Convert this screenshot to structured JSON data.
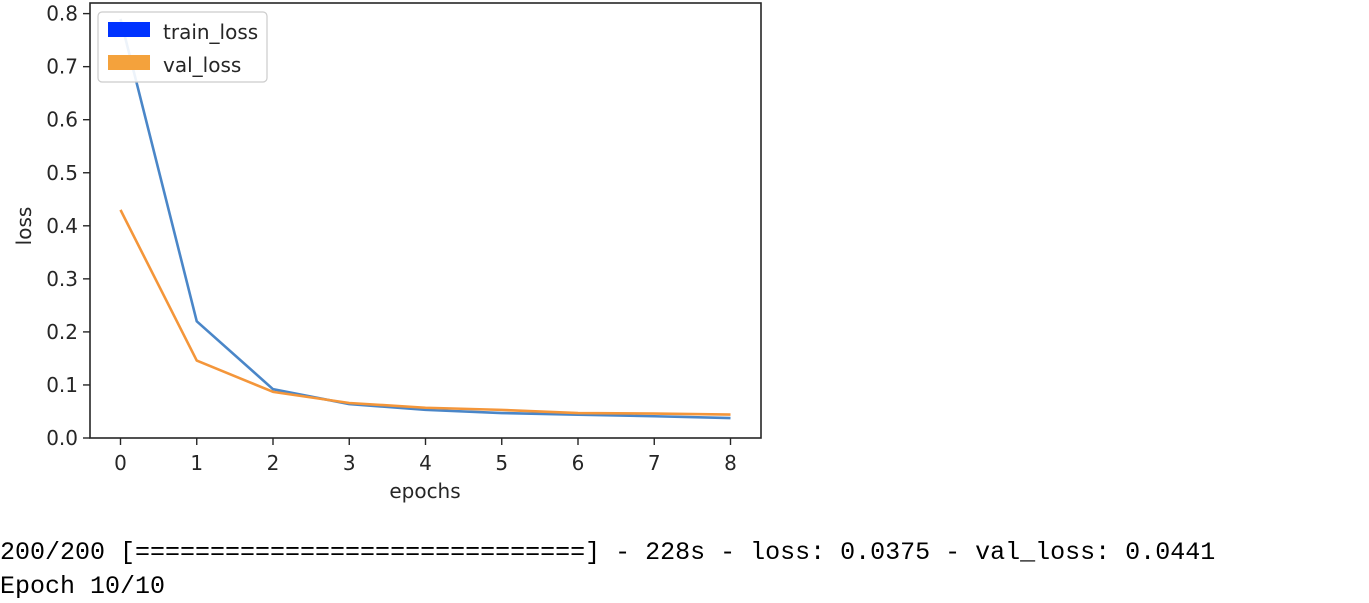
{
  "chart_data": {
    "type": "line",
    "title": "",
    "xlabel": "epochs",
    "ylabel": "loss",
    "x": [
      0,
      1,
      2,
      3,
      4,
      5,
      6,
      7,
      8
    ],
    "xlim": [
      -0.4,
      8.4
    ],
    "ylim": [
      0.0,
      0.82
    ],
    "xticks": [
      0,
      1,
      2,
      3,
      4,
      5,
      6,
      7,
      8
    ],
    "yticks": [
      "0.0",
      "0.1",
      "0.2",
      "0.3",
      "0.4",
      "0.5",
      "0.6",
      "0.7",
      "0.8"
    ],
    "ytick_values": [
      0.0,
      0.1,
      0.2,
      0.3,
      0.4,
      0.5,
      0.6,
      0.7,
      0.8
    ],
    "grid": false,
    "legend_position": "top-left",
    "series": [
      {
        "name": "train_loss",
        "color": "#4a86c8",
        "legend_color": "#0033ff",
        "values": [
          0.79,
          0.22,
          0.092,
          0.064,
          0.053,
          0.047,
          0.044,
          0.041,
          0.0375
        ]
      },
      {
        "name": "val_loss",
        "color": "#f4963a",
        "legend_color": "#f4a23c",
        "values": [
          0.43,
          0.146,
          0.087,
          0.066,
          0.057,
          0.053,
          0.047,
          0.046,
          0.0441
        ]
      }
    ]
  },
  "console": {
    "line1": "200/200 [==============================] - 228s - loss: 0.0375 - val_loss: 0.0441",
    "line2": "Epoch 10/10"
  }
}
